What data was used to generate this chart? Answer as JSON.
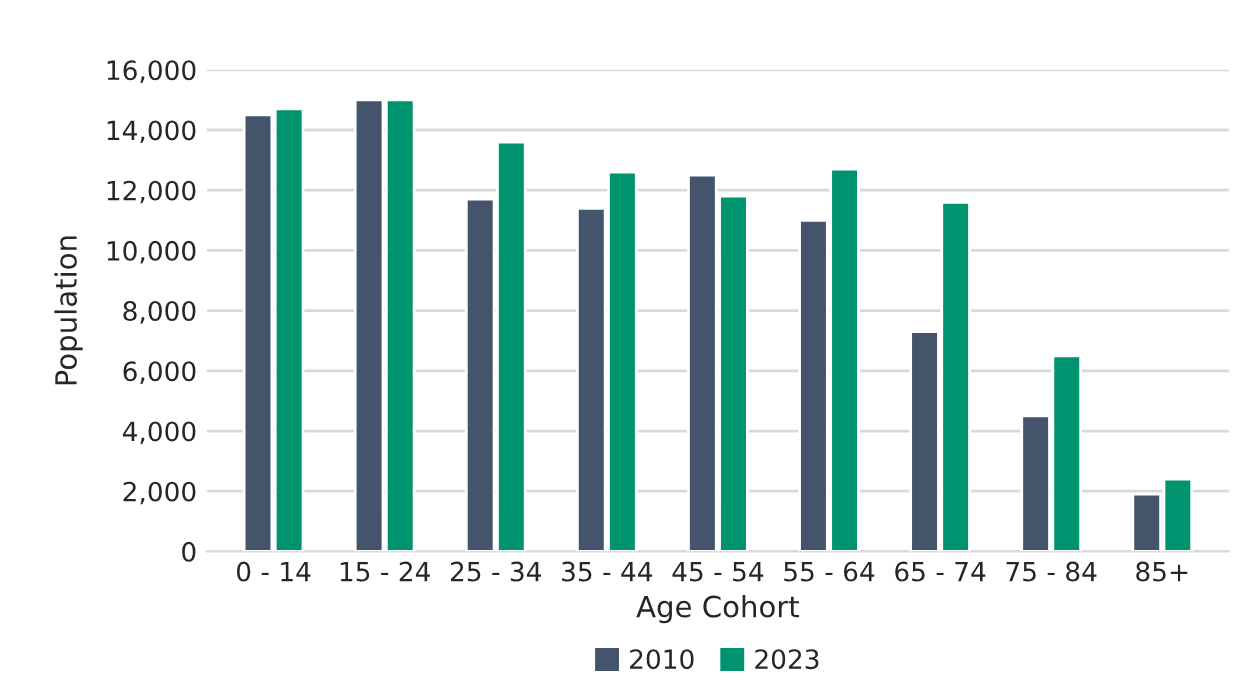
{
  "chart_data": {
    "type": "bar",
    "xlabel": "Age Cohort",
    "ylabel": "Population",
    "categories": [
      "0 - 14",
      "15 - 24",
      "25 - 34",
      "35 - 44",
      "45 - 54",
      "55 - 64",
      "65 - 74",
      "75 - 84",
      "85+"
    ],
    "series": [
      {
        "name": "2010",
        "color": "#44546a",
        "values": [
          14500,
          15000,
          11700,
          11400,
          12500,
          11000,
          7300,
          4500,
          1900
        ]
      },
      {
        "name": "2023",
        "color": "#00936f",
        "values": [
          14700,
          15000,
          13600,
          12600,
          11800,
          12700,
          11600,
          6500,
          2400
        ]
      }
    ],
    "ylim": [
      0,
      16000
    ],
    "yticks": [
      {
        "value": 0,
        "label": "0"
      },
      {
        "value": 2000,
        "label": "2,000"
      },
      {
        "value": 4000,
        "label": "4,000"
      },
      {
        "value": 6000,
        "label": "6,000"
      },
      {
        "value": 8000,
        "label": "8,000"
      },
      {
        "value": 10000,
        "label": "10,000"
      },
      {
        "value": 12000,
        "label": "12,000"
      },
      {
        "value": 14000,
        "label": "14,000"
      },
      {
        "value": 16000,
        "label": "16,000"
      }
    ],
    "grid": "y",
    "legend": "bottom"
  }
}
